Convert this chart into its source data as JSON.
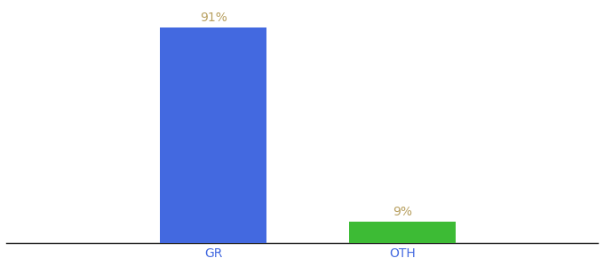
{
  "categories": [
    "GR",
    "OTH"
  ],
  "values": [
    91,
    9
  ],
  "bar_colors": [
    "#4369e0",
    "#3dbb35"
  ],
  "label_color": "#b8a060",
  "axis_label_color": "#4369e0",
  "background_color": "#ffffff",
  "bar_width": 0.18,
  "label_fontsize": 10,
  "tick_fontsize": 10,
  "value_labels": [
    "91%",
    "9%"
  ],
  "ylim": [
    0,
    100
  ],
  "xlim": [
    0.0,
    1.0
  ],
  "x_positions": [
    0.35,
    0.67
  ],
  "figsize": [
    6.8,
    3.0
  ],
  "dpi": 100
}
